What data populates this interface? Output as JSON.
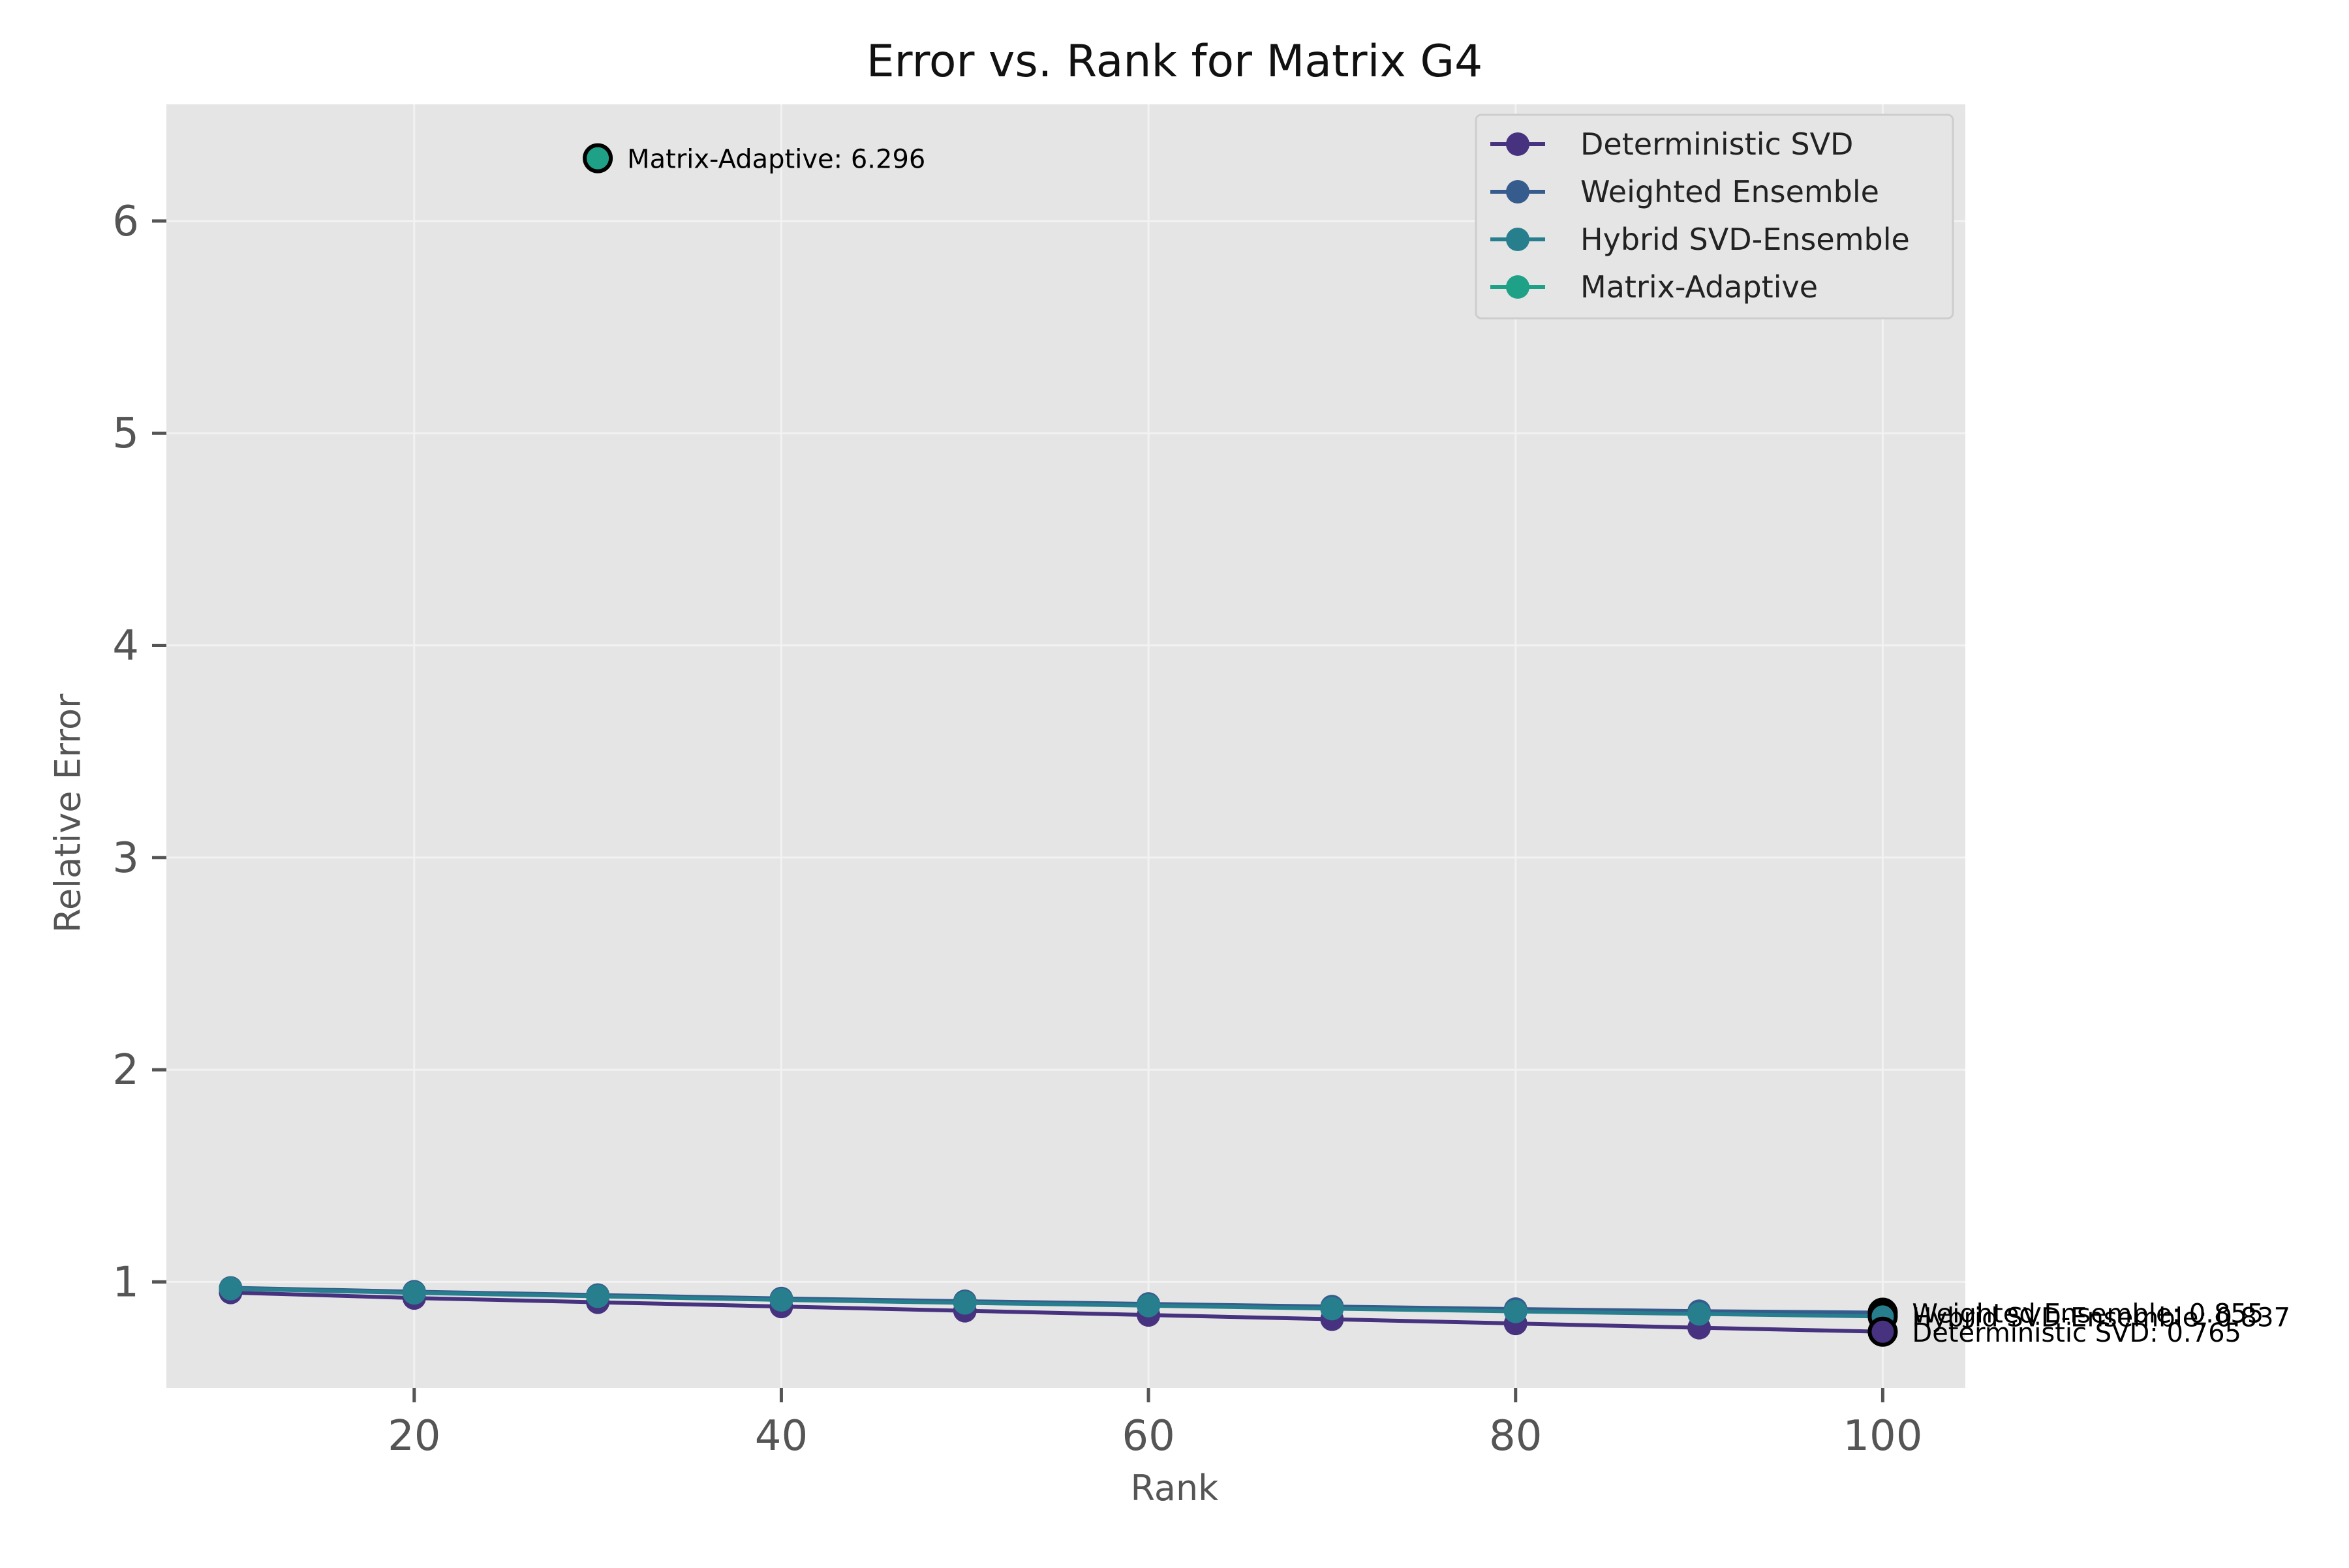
{
  "chart_data": {
    "type": "line",
    "title": "Error vs. Rank for Matrix G4",
    "xlabel": "Rank",
    "ylabel": "Relative Error",
    "xlim": [
      6.5,
      104.5
    ],
    "ylim": [
      0.5,
      6.55
    ],
    "x_ticks": [
      20,
      40,
      60,
      80,
      100
    ],
    "y_ticks": [
      1,
      2,
      3,
      4,
      5,
      6
    ],
    "grid": true,
    "legend_position": "top-right",
    "x": [
      10,
      20,
      30,
      40,
      50,
      60,
      70,
      80,
      90,
      100
    ],
    "series": [
      {
        "name": "Deterministic SVD",
        "color": "#46327e",
        "values": [
          0.95,
          0.924,
          0.904,
          0.884,
          0.864,
          0.844,
          0.824,
          0.804,
          0.784,
          0.765
        ]
      },
      {
        "name": "Weighted Ensemble",
        "color": "#365c8d",
        "values": [
          0.972,
          0.954,
          0.938,
          0.922,
          0.909,
          0.896,
          0.884,
          0.872,
          0.862,
          0.855
        ]
      },
      {
        "name": "Hybrid SVD-Ensemble",
        "color": "#277f8e",
        "values": [
          0.968,
          0.948,
          0.932,
          0.915,
          0.901,
          0.888,
          0.874,
          0.861,
          0.849,
          0.837
        ]
      },
      {
        "name": "Matrix-Adaptive",
        "color": "#1fa187",
        "values": [
          null,
          null,
          6.296,
          null,
          null,
          null,
          null,
          null,
          null,
          null
        ]
      }
    ],
    "annotations": [
      {
        "series": "Matrix-Adaptive",
        "x": 30,
        "y": 6.296,
        "text": "Matrix-Adaptive: 6.296"
      },
      {
        "series": "Weighted Ensemble",
        "x": 100,
        "y": 0.855,
        "text": "Weighted Ensemble: 0.855"
      },
      {
        "series": "Hybrid SVD-Ensemble",
        "x": 100,
        "y": 0.837,
        "text": "Hybrid SVD-Ensemble: 0.837"
      },
      {
        "series": "Deterministic SVD",
        "x": 100,
        "y": 0.765,
        "text": "Deterministic SVD: 0.765"
      }
    ]
  }
}
